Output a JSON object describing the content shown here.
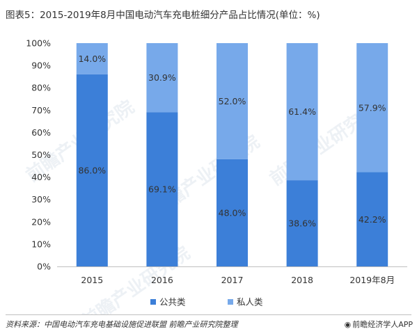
{
  "title": "图表5：2015-2019年8月中国电动汽车充电桩细分产品占比情况(单位：%)",
  "source": "资料来源：中国电动汽车充电基础设施促进联盟 前瞻产业研究院整理",
  "brand": "前瞻经济学人APP",
  "watermark": "前瞻产业研究院",
  "colors": {
    "public": "#3c7fd8",
    "private": "#77a9ea"
  },
  "chart_data": {
    "type": "bar",
    "stacked": true,
    "categories": [
      "2015",
      "2016",
      "2017",
      "2018",
      "2019年8月"
    ],
    "series": [
      {
        "name": "公共类",
        "values": [
          86.0,
          69.1,
          48.0,
          38.6,
          42.2
        ]
      },
      {
        "name": "私人类",
        "values": [
          14.0,
          30.9,
          52.0,
          61.4,
          57.9
        ]
      }
    ],
    "labels": [
      [
        "86.0%",
        "69.1%",
        "48.0%",
        "38.6%",
        "42.2%"
      ],
      [
        "14.0%",
        "30.9%",
        "52.0%",
        "61.4%",
        "57.9%"
      ]
    ],
    "yticks": [
      "0%",
      "10%",
      "20%",
      "30%",
      "40%",
      "50%",
      "60%",
      "70%",
      "80%",
      "90%",
      "100%"
    ],
    "ylim": [
      0,
      100
    ],
    "legend_position": "bottom",
    "grid": false
  }
}
